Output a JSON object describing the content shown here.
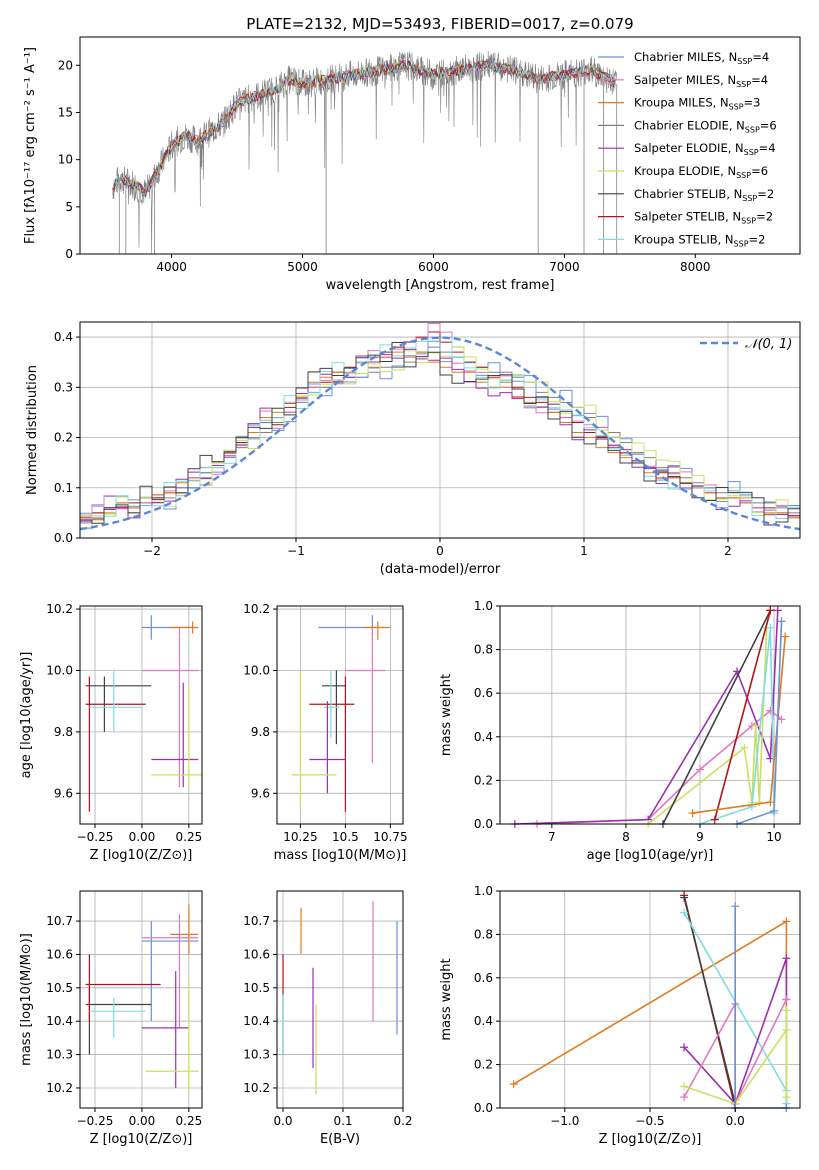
{
  "figure_title": "PLATE=2132, MJD=53493, FIBERID=0017, z=0.079",
  "legend_colors": [
    "#6a8fd8",
    "#e377c2",
    "#e07b20",
    "#7f7f7f",
    "#9c2fb0",
    "#c9e060",
    "#404040",
    "#b01515",
    "#7fdde0"
  ],
  "chart_data": [
    {
      "type": "line",
      "name": "spectrum",
      "xlabel": "wavelength [Angstrom, rest frame]",
      "ylabel": "Flux [fλ10⁻¹⁷ erg cm⁻² s⁻¹ A⁻¹]",
      "xlim": [
        3300,
        8800
      ],
      "ylim": [
        0,
        23
      ],
      "xticks": [
        4000,
        5000,
        6000,
        7000,
        8000
      ],
      "yticks": [
        0,
        5,
        10,
        15,
        20
      ],
      "grid": false,
      "legend_position": "top-right",
      "data_points": {
        "x": [
          3550,
          3600,
          3700,
          3800,
          3900,
          4000,
          4100,
          4200,
          4300,
          4400,
          4500,
          4600,
          4700,
          4800,
          4900,
          5000,
          5200,
          5400,
          5600,
          5800,
          6000,
          6200,
          6400,
          6600,
          6800,
          7000,
          7200,
          7400
        ],
        "y": [
          7.0,
          8.0,
          7.5,
          6.5,
          9.0,
          11.5,
          12.5,
          12.0,
          13.0,
          14.0,
          16.0,
          16.5,
          17.0,
          17.5,
          18.5,
          18.0,
          18.5,
          19.0,
          19.5,
          20.0,
          19.0,
          19.5,
          20.0,
          19.5,
          18.5,
          19.0,
          19.5,
          18.0
        ]
      },
      "series": [
        {
          "name": "Chabrier MILES, N_SSP=4"
        },
        {
          "name": "Salpeter MILES, N_SSP=4"
        },
        {
          "name": "Kroupa MILES, N_SSP=3"
        },
        {
          "name": "Chabrier ELODIE, N_SSP=6"
        },
        {
          "name": "Salpeter ELODIE, N_SSP=4"
        },
        {
          "name": "Kroupa ELODIE, N_SSP=6"
        },
        {
          "name": "Chabrier STELIB, N_SSP=2"
        },
        {
          "name": "Salpeter STELIB, N_SSP=2"
        },
        {
          "name": "Kroupa STELIB, N_SSP=2"
        }
      ]
    },
    {
      "type": "line",
      "name": "residual-distribution",
      "xlabel": "(data-model)/error",
      "ylabel": "Normed distribution",
      "xlim": [
        -2.5,
        2.5
      ],
      "ylim": [
        0,
        0.43
      ],
      "xticks": [
        -2,
        -1,
        0,
        1,
        2
      ],
      "yticks": [
        0.0,
        0.1,
        0.2,
        0.3,
        0.4
      ],
      "grid": true,
      "legend_position": "top-right",
      "reference_curve": "𝒩(0, 1)",
      "series": [
        {
          "values": [
            0.03,
            0.05,
            0.06,
            0.07,
            0.06,
            0.07,
            0.08,
            0.08,
            0.09,
            0.1,
            0.12,
            0.14,
            0.16,
            0.18,
            0.2,
            0.21,
            0.23,
            0.25,
            0.27,
            0.29,
            0.3,
            0.31,
            0.32,
            0.32,
            0.33,
            0.34,
            0.34,
            0.35,
            0.37,
            0.38,
            0.37,
            0.36,
            0.35,
            0.34,
            0.33,
            0.33,
            0.32,
            0.31,
            0.29,
            0.28,
            0.27,
            0.26,
            0.24,
            0.22,
            0.21,
            0.19,
            0.17,
            0.16,
            0.14,
            0.13,
            0.12,
            0.11,
            0.1,
            0.09,
            0.09,
            0.08,
            0.07,
            0.07,
            0.06,
            0.05
          ]
        },
        {
          "values": [
            0.04,
            0.05,
            0.06,
            0.06,
            0.07,
            0.08,
            0.08,
            0.09,
            0.1,
            0.12,
            0.13,
            0.15,
            0.17,
            0.19,
            0.21,
            0.23,
            0.24,
            0.26,
            0.28,
            0.3,
            0.31,
            0.33,
            0.34,
            0.35,
            0.36,
            0.37,
            0.38,
            0.39,
            0.4,
            0.41,
            0.39,
            0.37,
            0.35,
            0.34,
            0.32,
            0.31,
            0.3,
            0.28,
            0.27,
            0.25,
            0.24,
            0.23,
            0.21,
            0.2,
            0.18,
            0.17,
            0.15,
            0.14,
            0.13,
            0.12,
            0.11,
            0.1,
            0.09,
            0.08,
            0.08,
            0.07,
            0.06,
            0.06,
            0.05,
            0.04
          ]
        },
        {
          "values": [
            0.02,
            0.04,
            0.05,
            0.07,
            0.06,
            0.08,
            0.07,
            0.09,
            0.11,
            0.12,
            0.14,
            0.15,
            0.17,
            0.2,
            0.21,
            0.24,
            0.25,
            0.27,
            0.28,
            0.31,
            0.32,
            0.33,
            0.33,
            0.35,
            0.34,
            0.36,
            0.37,
            0.36,
            0.37,
            0.35,
            0.34,
            0.33,
            0.33,
            0.31,
            0.3,
            0.3,
            0.28,
            0.27,
            0.26,
            0.25,
            0.23,
            0.21,
            0.2,
            0.18,
            0.17,
            0.16,
            0.15,
            0.13,
            0.12,
            0.12,
            0.11,
            0.1,
            0.09,
            0.08,
            0.08,
            0.07,
            0.06,
            0.05,
            0.05,
            0.04
          ]
        }
      ]
    },
    {
      "type": "scatter",
      "name": "age-vs-Z",
      "xlabel": "Z [log10(Z/Z⊙)]",
      "ylabel": "age [log10(age/yr)]",
      "xlim": [
        -0.33,
        0.32
      ],
      "ylim": [
        9.5,
        10.21
      ],
      "xticks": [
        -0.25,
        0.0,
        0.25
      ],
      "yticks": [
        9.6,
        9.8,
        10.0,
        10.2
      ],
      "grid": true
    },
    {
      "type": "scatter",
      "name": "age-vs-mass",
      "xlabel": "mass [log10(M/M⊙)]",
      "ylabel": "",
      "xlim": [
        10.12,
        10.82
      ],
      "ylim": [
        9.5,
        10.21
      ],
      "xticks": [
        10.25,
        10.5,
        10.75
      ],
      "yticks": [
        9.6,
        9.8,
        10.0,
        10.2
      ],
      "grid": true
    },
    {
      "type": "line",
      "name": "mass-weight-vs-age",
      "xlabel": "age [log10(age/yr)]",
      "ylabel": "mass weight",
      "xlim": [
        6.3,
        10.35
      ],
      "ylim": [
        0,
        1.0
      ],
      "xticks": [
        7,
        8,
        9,
        10
      ],
      "yticks": [
        0.0,
        0.2,
        0.4,
        0.6,
        0.8,
        1.0
      ],
      "grid": true
    },
    {
      "type": "scatter",
      "name": "mass-vs-Z",
      "xlabel": "Z [log10(Z/Z⊙)]",
      "ylabel": "mass [log10(M/M⊙)]",
      "xlim": [
        -0.33,
        0.32
      ],
      "ylim": [
        10.14,
        10.79
      ],
      "xticks": [
        -0.25,
        0.0,
        0.25
      ],
      "yticks": [
        10.2,
        10.3,
        10.4,
        10.5,
        10.6,
        10.7
      ],
      "grid": true
    },
    {
      "type": "scatter",
      "name": "mass-vs-ebv",
      "xlabel": "E(B-V)",
      "ylabel": "",
      "xlim": [
        -0.01,
        0.2
      ],
      "ylim": [
        10.14,
        10.79
      ],
      "xticks": [
        0.0,
        0.1,
        0.2
      ],
      "yticks": [
        10.2,
        10.3,
        10.4,
        10.5,
        10.6,
        10.7
      ],
      "grid": true
    },
    {
      "type": "line",
      "name": "mass-weight-vs-Z",
      "xlabel": "Z [log10(Z/Z⊙)]",
      "ylabel": "mass weight",
      "xlim": [
        -1.38,
        0.38
      ],
      "ylim": [
        0,
        1.0
      ],
      "xticks": [
        -1.0,
        -0.5,
        0.0
      ],
      "yticks": [
        0.0,
        0.2,
        0.4,
        0.6,
        0.8,
        1.0
      ],
      "grid": true
    }
  ]
}
